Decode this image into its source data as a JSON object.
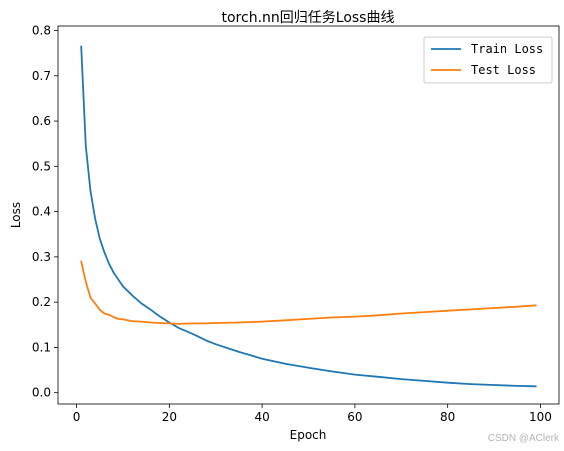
{
  "chart_data": {
    "type": "line",
    "title": "torch.nn回归任务Loss曲线",
    "xlabel": "Epoch",
    "ylabel": "Loss",
    "xlim": [
      -4,
      104
    ],
    "ylim": [
      -0.025,
      0.81
    ],
    "xticks": [
      0,
      20,
      40,
      60,
      80,
      100
    ],
    "yticks": [
      0.0,
      0.1,
      0.2,
      0.3,
      0.4,
      0.5,
      0.6,
      0.7,
      0.8
    ],
    "ytick_labels": [
      "0.0",
      "0.1",
      "0.2",
      "0.3",
      "0.4",
      "0.5",
      "0.6",
      "0.7",
      "0.8"
    ],
    "grid": false,
    "legend_position": "upper-right",
    "series": [
      {
        "name": "Train Loss",
        "color": "#1f77b4",
        "x": [
          1,
          2,
          3,
          4,
          5,
          6,
          7,
          8,
          9,
          10,
          12,
          14,
          16,
          18,
          20,
          22,
          25,
          28,
          30,
          35,
          40,
          45,
          50,
          55,
          60,
          65,
          70,
          75,
          80,
          85,
          90,
          95,
          99
        ],
        "y": [
          0.765,
          0.545,
          0.445,
          0.385,
          0.34,
          0.31,
          0.285,
          0.265,
          0.25,
          0.235,
          0.215,
          0.197,
          0.183,
          0.168,
          0.155,
          0.143,
          0.13,
          0.115,
          0.107,
          0.09,
          0.075,
          0.064,
          0.055,
          0.047,
          0.04,
          0.035,
          0.03,
          0.026,
          0.022,
          0.019,
          0.017,
          0.015,
          0.014
        ]
      },
      {
        "name": "Test Loss",
        "color": "#ff7f0e",
        "x": [
          1,
          2,
          3,
          4,
          5,
          6,
          7,
          8,
          9,
          10,
          12,
          14,
          16,
          18,
          20,
          22,
          25,
          28,
          30,
          35,
          40,
          45,
          50,
          55,
          60,
          65,
          70,
          75,
          80,
          85,
          90,
          95,
          99
        ],
        "y": [
          0.29,
          0.245,
          0.21,
          0.197,
          0.183,
          0.175,
          0.172,
          0.167,
          0.163,
          0.162,
          0.158,
          0.157,
          0.155,
          0.154,
          0.153,
          0.152,
          0.153,
          0.153,
          0.154,
          0.155,
          0.157,
          0.16,
          0.163,
          0.166,
          0.168,
          0.171,
          0.175,
          0.178,
          0.181,
          0.184,
          0.187,
          0.19,
          0.193
        ]
      }
    ]
  },
  "watermark": "CSDN @AClerk"
}
